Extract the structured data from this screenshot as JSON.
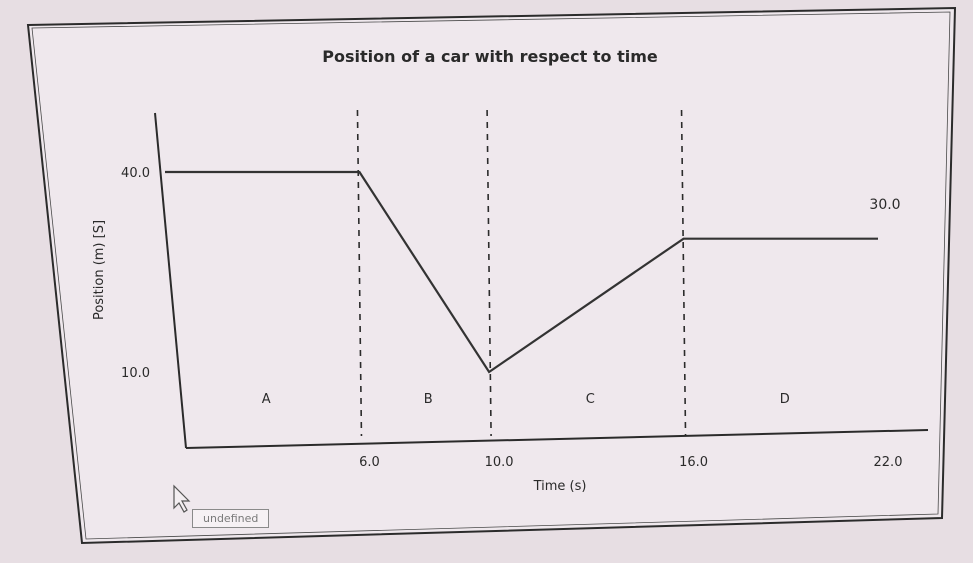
{
  "chart_data": {
    "type": "line",
    "title": "Position of a car with respect to time",
    "xlabel": "Time (s)",
    "ylabel": "Position (m) [S]",
    "x": [
      0,
      6.0,
      10.0,
      16.0,
      22.0
    ],
    "series": [
      {
        "values": [
          40.0,
          40.0,
          10.0,
          30.0,
          30.0
        ]
      }
    ],
    "xlim": [
      0,
      22.0
    ],
    "ylim": [
      0,
      40.0
    ],
    "x_ticks": [
      "6.0",
      "10.0",
      "16.0",
      "22.0"
    ],
    "y_ticks": [
      "40.0",
      "10.0"
    ],
    "boundaries": [
      6.0,
      10.0,
      16.0
    ],
    "regions": [
      {
        "label": "A",
        "x": 3.0
      },
      {
        "label": "B",
        "x": 8.0
      },
      {
        "label": "C",
        "x": 13.0
      },
      {
        "label": "D",
        "x": 19.0
      }
    ],
    "end_label": "30.0",
    "grid": false,
    "line_color": "#333333"
  },
  "tooltip": {
    "text": "undefined"
  }
}
